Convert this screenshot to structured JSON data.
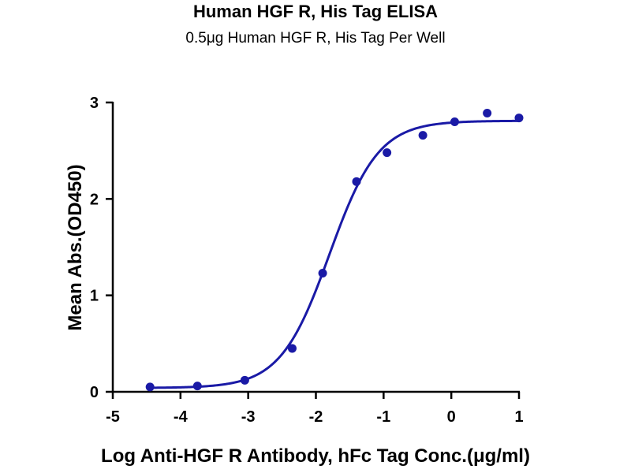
{
  "chart_data": {
    "type": "scatter",
    "title": "Human HGF R, His Tag ELISA",
    "subtitle": "0.5μg Human HGF R, His Tag Per Well",
    "xlabel": "Log Anti-HGF R Antibody, hFc Tag Conc.(μg/ml)",
    "ylabel": "Mean Abs.(OD450)",
    "xlim": [
      -5,
      1
    ],
    "ylim": [
      0,
      3
    ],
    "x_ticks": [
      -5,
      -4,
      -3,
      -2,
      -1,
      0,
      1
    ],
    "y_ticks": [
      0,
      1,
      2,
      3
    ],
    "points": [
      {
        "x": -4.45,
        "y": 0.05
      },
      {
        "x": -3.75,
        "y": 0.06
      },
      {
        "x": -3.05,
        "y": 0.12
      },
      {
        "x": -2.35,
        "y": 0.45
      },
      {
        "x": -1.9,
        "y": 1.23
      },
      {
        "x": -1.4,
        "y": 2.18
      },
      {
        "x": -0.95,
        "y": 2.48
      },
      {
        "x": -0.42,
        "y": 2.66
      },
      {
        "x": 0.05,
        "y": 2.8
      },
      {
        "x": 0.53,
        "y": 2.89
      },
      {
        "x": 1.0,
        "y": 2.84
      }
    ],
    "fit": {
      "bottom": 0.04,
      "top": 2.81,
      "log_ec50": -1.8,
      "hill_slope": 1.2
    },
    "grid": false,
    "color": "#1a1aa6"
  }
}
